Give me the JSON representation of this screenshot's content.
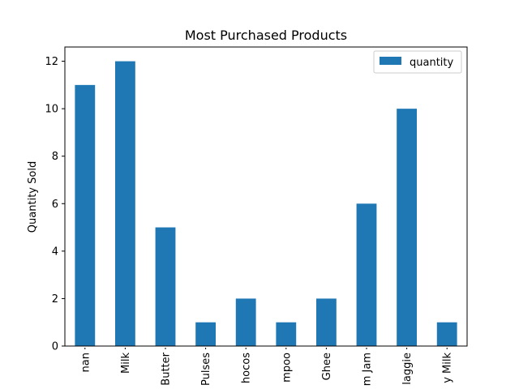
{
  "chart_data": {
    "type": "bar",
    "title": "Most Purchased Products",
    "xlabel": "",
    "ylabel": "Quantity Sold",
    "categories": [
      "nan",
      "Milk",
      "Butter",
      "Pulses",
      "Chocos",
      "Shampoo",
      "Ghee",
      "Jam Jam",
      "Maggie",
      "Dairy Milk"
    ],
    "displayed_categories": [
      "nan",
      "Milk",
      "Butter",
      "Pulses",
      "hocos",
      "mpoo",
      "Ghee",
      "m Jam",
      "laggie",
      "y Milk"
    ],
    "series": [
      {
        "name": "quantity",
        "values": [
          11,
          12,
          5,
          1,
          2,
          1,
          2,
          6,
          10,
          1
        ],
        "color": "#1f77b4"
      }
    ],
    "ylim": [
      0,
      12.6
    ],
    "yticks": [
      0,
      2,
      4,
      6,
      8,
      10,
      12
    ],
    "grid": false,
    "legend_position": "top-right"
  }
}
